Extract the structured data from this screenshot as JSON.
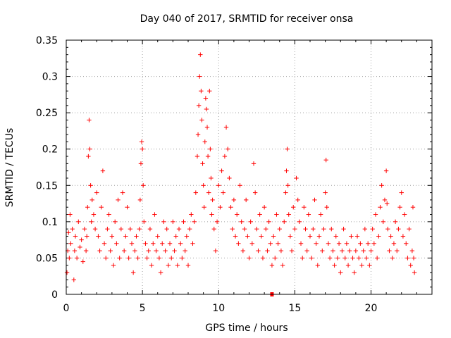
{
  "chart_data": {
    "type": "scatter",
    "title": "Day 040 of 2017, SRMTID for receiver onsa",
    "xlabel": "GPS time / hours",
    "ylabel": "SRMTID / TECUs",
    "xlim": [
      0,
      24
    ],
    "ylim": [
      0,
      0.35
    ],
    "xticks": [
      "0",
      "5",
      "10",
      "15",
      "20"
    ],
    "yticks": [
      "0",
      "0.05",
      "0.1",
      "0.15",
      "0.2",
      "0.25",
      "0.3",
      "0.35"
    ],
    "grid": true,
    "marker": "plus",
    "color": "#ff0000",
    "series": [
      {
        "name": "SRMTID",
        "points": [
          [
            0.05,
            0.03
          ],
          [
            0.1,
            0.06
          ],
          [
            0.15,
            0.085
          ],
          [
            0.2,
            0.05
          ],
          [
            0.25,
            0.11
          ],
          [
            0.3,
            0.07
          ],
          [
            0.4,
            0.09
          ],
          [
            0.5,
            0.02
          ],
          [
            0.55,
            0.06
          ],
          [
            0.6,
            0.08
          ],
          [
            0.7,
            0.05
          ],
          [
            0.8,
            0.1
          ],
          [
            0.9,
            0.065
          ],
          [
            1.0,
            0.075
          ],
          [
            1.1,
            0.045
          ],
          [
            1.2,
            0.09
          ],
          [
            1.3,
            0.06
          ],
          [
            1.35,
            0.08
          ],
          [
            1.4,
            0.12
          ],
          [
            1.45,
            0.19
          ],
          [
            1.5,
            0.24
          ],
          [
            1.55,
            0.2
          ],
          [
            1.6,
            0.15
          ],
          [
            1.65,
            0.1
          ],
          [
            1.7,
            0.13
          ],
          [
            1.8,
            0.11
          ],
          [
            1.9,
            0.09
          ],
          [
            2.0,
            0.14
          ],
          [
            2.1,
            0.08
          ],
          [
            2.2,
            0.06
          ],
          [
            2.3,
            0.12
          ],
          [
            2.4,
            0.17
          ],
          [
            2.5,
            0.07
          ],
          [
            2.6,
            0.05
          ],
          [
            2.7,
            0.09
          ],
          [
            2.8,
            0.11
          ],
          [
            2.9,
            0.06
          ],
          [
            3.0,
            0.08
          ],
          [
            3.1,
            0.04
          ],
          [
            3.2,
            0.1
          ],
          [
            3.3,
            0.07
          ],
          [
            3.4,
            0.13
          ],
          [
            3.5,
            0.05
          ],
          [
            3.6,
            0.09
          ],
          [
            3.7,
            0.14
          ],
          [
            3.8,
            0.06
          ],
          [
            3.9,
            0.08
          ],
          [
            4.0,
            0.12
          ],
          [
            4.1,
            0.05
          ],
          [
            4.2,
            0.09
          ],
          [
            4.3,
            0.07
          ],
          [
            4.4,
            0.03
          ],
          [
            4.5,
            0.06
          ],
          [
            4.6,
            0.08
          ],
          [
            4.7,
            0.05
          ],
          [
            4.8,
            0.09
          ],
          [
            4.85,
            0.13
          ],
          [
            4.9,
            0.18
          ],
          [
            4.95,
            0.21
          ],
          [
            5.0,
            0.2
          ],
          [
            5.05,
            0.15
          ],
          [
            5.1,
            0.1
          ],
          [
            5.2,
            0.07
          ],
          [
            5.3,
            0.05
          ],
          [
            5.4,
            0.06
          ],
          [
            5.5,
            0.09
          ],
          [
            5.6,
            0.04
          ],
          [
            5.7,
            0.07
          ],
          [
            5.8,
            0.11
          ],
          [
            5.9,
            0.06
          ],
          [
            6.0,
            0.08
          ],
          [
            6.1,
            0.05
          ],
          [
            6.2,
            0.03
          ],
          [
            6.3,
            0.07
          ],
          [
            6.4,
            0.1
          ],
          [
            6.5,
            0.06
          ],
          [
            6.6,
            0.09
          ],
          [
            6.7,
            0.04
          ],
          [
            6.8,
            0.07
          ],
          [
            6.9,
            0.05
          ],
          [
            7.0,
            0.1
          ],
          [
            7.1,
            0.06
          ],
          [
            7.2,
            0.08
          ],
          [
            7.3,
            0.04
          ],
          [
            7.4,
            0.09
          ],
          [
            7.5,
            0.07
          ],
          [
            7.6,
            0.05
          ],
          [
            7.7,
            0.1
          ],
          [
            7.8,
            0.06
          ],
          [
            7.9,
            0.08
          ],
          [
            8.0,
            0.04
          ],
          [
            8.1,
            0.09
          ],
          [
            8.2,
            0.11
          ],
          [
            8.3,
            0.07
          ],
          [
            8.4,
            0.1
          ],
          [
            8.5,
            0.14
          ],
          [
            8.6,
            0.19
          ],
          [
            8.65,
            0.22
          ],
          [
            8.7,
            0.26
          ],
          [
            8.75,
            0.3
          ],
          [
            8.8,
            0.33
          ],
          [
            8.85,
            0.28
          ],
          [
            8.9,
            0.24
          ],
          [
            8.95,
            0.18
          ],
          [
            9.0,
            0.15
          ],
          [
            9.05,
            0.12
          ],
          [
            9.1,
            0.21
          ],
          [
            9.15,
            0.27
          ],
          [
            9.2,
            0.255
          ],
          [
            9.25,
            0.23
          ],
          [
            9.3,
            0.19
          ],
          [
            9.35,
            0.14
          ],
          [
            9.4,
            0.28
          ],
          [
            9.45,
            0.2
          ],
          [
            9.5,
            0.16
          ],
          [
            9.55,
            0.11
          ],
          [
            9.6,
            0.13
          ],
          [
            9.7,
            0.09
          ],
          [
            9.8,
            0.06
          ],
          [
            9.9,
            0.1
          ],
          [
            10.0,
            0.15
          ],
          [
            10.1,
            0.12
          ],
          [
            10.2,
            0.17
          ],
          [
            10.3,
            0.14
          ],
          [
            10.4,
            0.19
          ],
          [
            10.5,
            0.23
          ],
          [
            10.6,
            0.2
          ],
          [
            10.7,
            0.16
          ],
          [
            10.8,
            0.12
          ],
          [
            10.9,
            0.09
          ],
          [
            11.0,
            0.13
          ],
          [
            11.1,
            0.08
          ],
          [
            11.2,
            0.11
          ],
          [
            11.3,
            0.07
          ],
          [
            11.4,
            0.15
          ],
          [
            11.5,
            0.1
          ],
          [
            11.6,
            0.06
          ],
          [
            11.7,
            0.09
          ],
          [
            11.8,
            0.13
          ],
          [
            11.9,
            0.08
          ],
          [
            12.0,
            0.05
          ],
          [
            12.1,
            0.1
          ],
          [
            12.2,
            0.07
          ],
          [
            12.3,
            0.18
          ],
          [
            12.4,
            0.14
          ],
          [
            12.5,
            0.09
          ],
          [
            12.6,
            0.06
          ],
          [
            12.7,
            0.11
          ],
          [
            12.8,
            0.08
          ],
          [
            12.9,
            0.05
          ],
          [
            13.0,
            0.12
          ],
          [
            13.1,
            0.09
          ],
          [
            13.2,
            0.06
          ],
          [
            13.3,
            0.1
          ],
          [
            13.4,
            0.07
          ],
          [
            13.5,
            0.04
          ],
          [
            13.6,
            0.08
          ],
          [
            13.7,
            0.05
          ],
          [
            13.8,
            0.11
          ],
          [
            13.9,
            0.07
          ],
          [
            14.0,
            0.09
          ],
          [
            14.1,
            0.06
          ],
          [
            14.2,
            0.04
          ],
          [
            14.3,
            0.1
          ],
          [
            14.4,
            0.14
          ],
          [
            14.45,
            0.17
          ],
          [
            14.5,
            0.2
          ],
          [
            14.55,
            0.15
          ],
          [
            14.6,
            0.11
          ],
          [
            14.7,
            0.08
          ],
          [
            14.8,
            0.06
          ],
          [
            14.9,
            0.12
          ],
          [
            15.0,
            0.09
          ],
          [
            15.1,
            0.16
          ],
          [
            15.2,
            0.13
          ],
          [
            15.3,
            0.1
          ],
          [
            15.4,
            0.07
          ],
          [
            15.5,
            0.05
          ],
          [
            15.6,
            0.12
          ],
          [
            15.7,
            0.09
          ],
          [
            15.8,
            0.06
          ],
          [
            15.9,
            0.11
          ],
          [
            16.0,
            0.08
          ],
          [
            16.1,
            0.05
          ],
          [
            16.2,
            0.09
          ],
          [
            16.3,
            0.13
          ],
          [
            16.4,
            0.07
          ],
          [
            16.5,
            0.04
          ],
          [
            16.6,
            0.08
          ],
          [
            16.7,
            0.11
          ],
          [
            16.8,
            0.06
          ],
          [
            16.9,
            0.09
          ],
          [
            17.0,
            0.14
          ],
          [
            17.05,
            0.185
          ],
          [
            17.1,
            0.12
          ],
          [
            17.2,
            0.07
          ],
          [
            17.3,
            0.05
          ],
          [
            17.4,
            0.09
          ],
          [
            17.5,
            0.06
          ],
          [
            17.6,
            0.04
          ],
          [
            17.7,
            0.08
          ],
          [
            17.8,
            0.05
          ],
          [
            17.9,
            0.07
          ],
          [
            18.0,
            0.03
          ],
          [
            18.1,
            0.06
          ],
          [
            18.2,
            0.09
          ],
          [
            18.3,
            0.05
          ],
          [
            18.4,
            0.07
          ],
          [
            18.5,
            0.04
          ],
          [
            18.6,
            0.06
          ],
          [
            18.7,
            0.08
          ],
          [
            18.8,
            0.05
          ],
          [
            18.9,
            0.03
          ],
          [
            19.0,
            0.06
          ],
          [
            19.1,
            0.08
          ],
          [
            19.2,
            0.05
          ],
          [
            19.3,
            0.07
          ],
          [
            19.4,
            0.04
          ],
          [
            19.5,
            0.06
          ],
          [
            19.6,
            0.09
          ],
          [
            19.7,
            0.05
          ],
          [
            19.8,
            0.07
          ],
          [
            19.9,
            0.04
          ],
          [
            20.0,
            0.06
          ],
          [
            20.1,
            0.09
          ],
          [
            20.2,
            0.07
          ],
          [
            20.3,
            0.11
          ],
          [
            20.4,
            0.05
          ],
          [
            20.5,
            0.08
          ],
          [
            20.6,
            0.12
          ],
          [
            20.7,
            0.15
          ],
          [
            20.8,
            0.1
          ],
          [
            20.9,
            0.13
          ],
          [
            21.0,
            0.17
          ],
          [
            21.05,
            0.125
          ],
          [
            21.1,
            0.09
          ],
          [
            21.2,
            0.06
          ],
          [
            21.3,
            0.08
          ],
          [
            21.4,
            0.05
          ],
          [
            21.5,
            0.07
          ],
          [
            21.6,
            0.1
          ],
          [
            21.7,
            0.06
          ],
          [
            21.8,
            0.09
          ],
          [
            21.9,
            0.12
          ],
          [
            22.0,
            0.14
          ],
          [
            22.1,
            0.08
          ],
          [
            22.2,
            0.11
          ],
          [
            22.3,
            0.07
          ],
          [
            22.4,
            0.05
          ],
          [
            22.5,
            0.09
          ],
          [
            22.6,
            0.04
          ],
          [
            22.7,
            0.06
          ],
          [
            22.75,
            0.12
          ],
          [
            22.8,
            0.05
          ],
          [
            22.85,
            0.03
          ]
        ]
      }
    ],
    "outlier": {
      "x": 13.5,
      "y": 0.0
    }
  }
}
